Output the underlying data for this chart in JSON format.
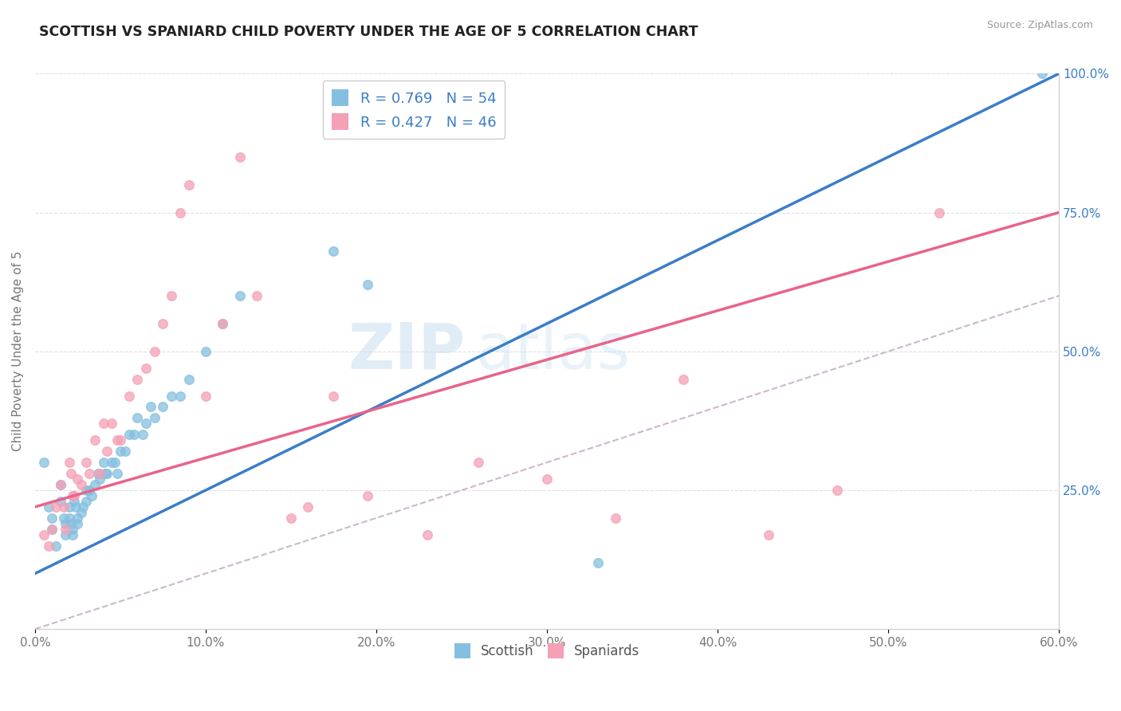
{
  "title": "SCOTTISH VS SPANIARD CHILD POVERTY UNDER THE AGE OF 5 CORRELATION CHART",
  "source": "Source: ZipAtlas.com",
  "ylabel": "Child Poverty Under the Age of 5",
  "xlim": [
    0.0,
    0.6
  ],
  "ylim": [
    0.0,
    1.0
  ],
  "xtick_labels": [
    "0.0%",
    "10.0%",
    "20.0%",
    "30.0%",
    "40.0%",
    "50.0%",
    "60.0%"
  ],
  "xtick_vals": [
    0.0,
    0.1,
    0.2,
    0.3,
    0.4,
    0.5,
    0.6
  ],
  "ytick_labels_right": [
    "100.0%",
    "75.0%",
    "50.0%",
    "25.0%"
  ],
  "ytick_vals_right": [
    1.0,
    0.75,
    0.5,
    0.25
  ],
  "scottish_R": 0.769,
  "scottish_N": 54,
  "spaniard_R": 0.427,
  "spaniard_N": 46,
  "scottish_color": "#85bfe0",
  "spaniard_color": "#f4a0b5",
  "trendline_scottish_color": "#3a7dc9",
  "trendline_spaniard_color": "#e8648a",
  "diagonal_color": "#ccb8cc",
  "background_color": "#ffffff",
  "watermark_zip": "ZIP",
  "watermark_atlas": "atlas",
  "legend_scottish_label": "Scottish",
  "legend_spaniard_label": "Spaniards",
  "scottish_trendline_x": [
    0.0,
    0.6
  ],
  "scottish_trendline_y": [
    0.1,
    1.0
  ],
  "spaniard_trendline_x": [
    0.0,
    0.6
  ],
  "spaniard_trendline_y": [
    0.22,
    0.75
  ],
  "scottish_x": [
    0.005,
    0.008,
    0.01,
    0.01,
    0.012,
    0.015,
    0.015,
    0.017,
    0.018,
    0.018,
    0.02,
    0.02,
    0.021,
    0.022,
    0.022,
    0.023,
    0.024,
    0.025,
    0.025,
    0.027,
    0.028,
    0.03,
    0.03,
    0.032,
    0.033,
    0.035,
    0.037,
    0.038,
    0.04,
    0.041,
    0.042,
    0.045,
    0.047,
    0.048,
    0.05,
    0.053,
    0.055,
    0.058,
    0.06,
    0.063,
    0.065,
    0.068,
    0.07,
    0.075,
    0.08,
    0.085,
    0.09,
    0.1,
    0.11,
    0.12,
    0.175,
    0.195,
    0.33,
    0.59
  ],
  "scottish_y": [
    0.3,
    0.22,
    0.2,
    0.18,
    0.15,
    0.26,
    0.23,
    0.2,
    0.19,
    0.17,
    0.22,
    0.2,
    0.19,
    0.18,
    0.17,
    0.23,
    0.22,
    0.2,
    0.19,
    0.21,
    0.22,
    0.25,
    0.23,
    0.25,
    0.24,
    0.26,
    0.28,
    0.27,
    0.3,
    0.28,
    0.28,
    0.3,
    0.3,
    0.28,
    0.32,
    0.32,
    0.35,
    0.35,
    0.38,
    0.35,
    0.37,
    0.4,
    0.38,
    0.4,
    0.42,
    0.42,
    0.45,
    0.5,
    0.55,
    0.6,
    0.68,
    0.62,
    0.12,
    1.0
  ],
  "spaniard_x": [
    0.005,
    0.008,
    0.01,
    0.012,
    0.015,
    0.017,
    0.018,
    0.02,
    0.021,
    0.022,
    0.023,
    0.025,
    0.027,
    0.03,
    0.032,
    0.035,
    0.038,
    0.04,
    0.042,
    0.045,
    0.048,
    0.05,
    0.055,
    0.06,
    0.065,
    0.07,
    0.075,
    0.08,
    0.085,
    0.09,
    0.1,
    0.11,
    0.12,
    0.13,
    0.15,
    0.16,
    0.175,
    0.195,
    0.23,
    0.26,
    0.3,
    0.34,
    0.38,
    0.43,
    0.47,
    0.53
  ],
  "spaniard_y": [
    0.17,
    0.15,
    0.18,
    0.22,
    0.26,
    0.22,
    0.18,
    0.3,
    0.28,
    0.24,
    0.24,
    0.27,
    0.26,
    0.3,
    0.28,
    0.34,
    0.28,
    0.37,
    0.32,
    0.37,
    0.34,
    0.34,
    0.42,
    0.45,
    0.47,
    0.5,
    0.55,
    0.6,
    0.75,
    0.8,
    0.42,
    0.55,
    0.85,
    0.6,
    0.2,
    0.22,
    0.42,
    0.24,
    0.17,
    0.3,
    0.27,
    0.2,
    0.45,
    0.17,
    0.25,
    0.75
  ]
}
